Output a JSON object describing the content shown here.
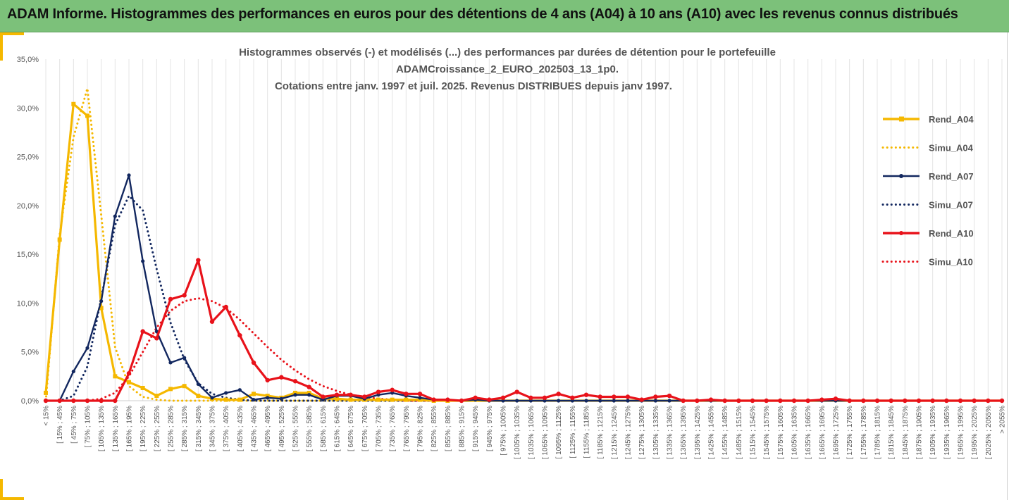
{
  "header": {
    "title": "ADAM Informe. Histogrammes des performances en euros pour des détentions de 4 ans (A04) à 10 ans (A10) avec les revenus connus distribués"
  },
  "chart_data": {
    "type": "line",
    "title_lines": [
      "Histogrammes observés (-) et modélisés (...) des performances par durées de détention pour le portefeuille",
      "ADAMCroissance_2_EURO_202503_13_1p0.",
      "Cotations entre janv. 1997 et juil. 2025. Revenus DISTRIBUES depuis janv 1997."
    ],
    "xlabel": "",
    "ylabel": "",
    "ylim": [
      0,
      35
    ],
    "yticks": [
      "0,0%",
      "5,0%",
      "10,0%",
      "15,0%",
      "20,0%",
      "25,0%",
      "30,0%",
      "35,0%"
    ],
    "grid": true,
    "legend_position": "right",
    "categories": [
      "< 15%",
      "[ 15% ; 45%",
      "[ 45% ; 75%",
      "[ 75% ; 105%",
      "[ 105% ; 135%",
      "[ 135% ; 165%",
      "[ 165% ; 195%",
      "[ 195% ; 225%",
      "[ 225% ; 255%",
      "[ 255% ; 285%",
      "[ 285% ; 315%",
      "[ 315% ; 345%",
      "[ 345% ; 375%",
      "[ 375% ; 405%",
      "[ 405% ; 435%",
      "[ 435% ; 465%",
      "[ 465% ; 495%",
      "[ 495% ; 525%",
      "[ 525% ; 555%",
      "[ 555% ; 585%",
      "[ 585% ; 615%",
      "[ 615% ; 645%",
      "[ 645% ; 675%",
      "[ 675% ; 705%",
      "[ 705% ; 735%",
      "[ 735% ; 765%",
      "[ 765% ; 795%",
      "[ 795% ; 825%",
      "[ 825% ; 855%",
      "[ 855% ; 885%",
      "[ 885% ; 915%",
      "[ 915% ; 945%",
      "[ 945% ; 975%",
      "[ 975% ; 1005%",
      "[ 1005% ; 1035%",
      "[ 1035% ; 1065%",
      "[ 1065% ; 1095%",
      "[ 1095% ; 1125%",
      "[ 1125% ; 1155%",
      "[ 1155% ; 1185%",
      "[ 1185% ; 1215%",
      "[ 1215% ; 1245%",
      "[ 1245% ; 1275%",
      "[ 1275% ; 1305%",
      "[ 1305% ; 1335%",
      "[ 1335% ; 1365%",
      "[ 1365% ; 1395%",
      "[ 1395% ; 1425%",
      "[ 1425% ; 1455%",
      "[ 1455% ; 1485%",
      "[ 1485% ; 1515%",
      "[ 1515% ; 1545%",
      "[ 1545% ; 1575%",
      "[ 1575% ; 1605%",
      "[ 1605% ; 1635%",
      "[ 1635% ; 1665%",
      "[ 1665% ; 1695%",
      "[ 1695% ; 1725%",
      "[ 1725% ; 1755%",
      "[ 1755% ; 1785%",
      "[ 1785% ; 1815%",
      "[ 1815% ; 1845%",
      "[ 1845% ; 1875%",
      "[ 1875% ; 1905%",
      "[ 1905% ; 1935%",
      "[ 1935% ; 1965%",
      "[ 1965% ; 1995%",
      "[ 1995% ; 2025%",
      "[ 2025% ; 2055%",
      "> 2055%"
    ],
    "series": [
      {
        "name": "Rend_A04",
        "color": "#f5b800",
        "style": "solid",
        "marker": "square",
        "values": [
          0.8,
          16.5,
          30.4,
          29.2,
          9.5,
          2.5,
          1.9,
          1.3,
          0.5,
          1.2,
          1.5,
          0.5,
          0.2,
          0.1,
          0.1,
          0.7,
          0.5,
          0.3,
          0.8,
          0.8,
          0.2,
          0.2,
          0.1,
          0.1,
          0.1,
          0.1,
          0.1,
          0.1,
          0,
          0,
          0,
          0,
          0,
          0,
          0,
          0,
          0,
          0,
          0,
          0,
          0,
          0,
          0,
          0,
          0,
          0,
          0,
          0,
          0,
          0,
          0,
          0,
          0,
          0,
          0,
          0,
          0,
          0,
          0,
          0,
          0,
          0,
          0,
          0,
          0,
          0,
          0,
          0,
          0,
          0
        ]
      },
      {
        "name": "Simu_A04",
        "color": "#f5b800",
        "style": "dotted",
        "marker": "none",
        "values": [
          0,
          17,
          27,
          32,
          19,
          5.5,
          1.5,
          0.4,
          0.1,
          0,
          0,
          0,
          0,
          0,
          0,
          0,
          0,
          0,
          0,
          0,
          0,
          0,
          0,
          0,
          0,
          0,
          0,
          0,
          0,
          0,
          0,
          0,
          0,
          0,
          0,
          0,
          0,
          0,
          0,
          0,
          0,
          0,
          0,
          0,
          0,
          0,
          0,
          0,
          0,
          0,
          0,
          0,
          0,
          0,
          0,
          0,
          0,
          0,
          0,
          0,
          0,
          0,
          0,
          0,
          0,
          0,
          0,
          0,
          0,
          0
        ]
      },
      {
        "name": "Rend_A07",
        "color": "#12275f",
        "style": "solid",
        "marker": "circle",
        "values": [
          0,
          0,
          3.0,
          5.4,
          10.2,
          18.9,
          23.1,
          14.3,
          7.1,
          3.9,
          4.4,
          1.7,
          0.3,
          0.8,
          1.1,
          0.1,
          0.3,
          0.2,
          0.6,
          0.6,
          0.1,
          0.5,
          0.5,
          0.2,
          0.6,
          0.8,
          0.5,
          0.3,
          0.1,
          0.1,
          0,
          0.1,
          0,
          0,
          0,
          0,
          0,
          0,
          0,
          0,
          0,
          0,
          0,
          0,
          0,
          0,
          0,
          0,
          0,
          0,
          0,
          0,
          0,
          0,
          0,
          0,
          0,
          0,
          0,
          0,
          0,
          0,
          0,
          0,
          0,
          0,
          0,
          0,
          0,
          0
        ]
      },
      {
        "name": "Simu_A07",
        "color": "#12275f",
        "style": "dotted",
        "marker": "none",
        "values": [
          0,
          0,
          0.5,
          3.5,
          10.5,
          18,
          21,
          19.5,
          13.5,
          8,
          4.2,
          1.8,
          0.7,
          0.3,
          0.1,
          0,
          0,
          0,
          0,
          0,
          0,
          0,
          0,
          0,
          0,
          0,
          0,
          0,
          0,
          0,
          0,
          0,
          0,
          0,
          0,
          0,
          0,
          0,
          0,
          0,
          0,
          0,
          0,
          0,
          0,
          0,
          0,
          0,
          0,
          0,
          0,
          0,
          0,
          0,
          0,
          0,
          0,
          0,
          0,
          0,
          0,
          0,
          0,
          0,
          0,
          0,
          0,
          0,
          0,
          0
        ]
      },
      {
        "name": "Rend_A10",
        "color": "#e8121a",
        "style": "solid",
        "marker": "circle",
        "values": [
          0,
          0,
          0,
          0,
          0,
          0,
          2.8,
          7.1,
          6.4,
          10.4,
          10.8,
          14.4,
          8.1,
          9.6,
          6.7,
          3.9,
          2.1,
          2.4,
          2.0,
          1.4,
          0.4,
          0.6,
          0.6,
          0.4,
          0.9,
          1.1,
          0.7,
          0.7,
          0.1,
          0.1,
          0,
          0.3,
          0.1,
          0.3,
          0.9,
          0.3,
          0.3,
          0.7,
          0.3,
          0.6,
          0.4,
          0.4,
          0.4,
          0.1,
          0.4,
          0.5,
          0,
          0,
          0.1,
          0,
          0,
          0,
          0,
          0,
          0,
          0,
          0.1,
          0.2,
          0,
          0,
          0,
          0,
          0,
          0,
          0,
          0,
          0,
          0,
          0,
          0
        ]
      },
      {
        "name": "Simu_A10",
        "color": "#e8121a",
        "style": "dotted",
        "marker": "none",
        "values": [
          0,
          0,
          0,
          0,
          0.2,
          0.8,
          2.5,
          5,
          7.5,
          9.2,
          10.2,
          10.5,
          10.2,
          9.5,
          8.3,
          6.9,
          5.5,
          4.2,
          3.1,
          2.2,
          1.5,
          1.0,
          0.6,
          0.4,
          0.2,
          0.1,
          0,
          0,
          0,
          0,
          0,
          0,
          0,
          0,
          0,
          0,
          0,
          0,
          0,
          0,
          0,
          0,
          0,
          0,
          0,
          0,
          0,
          0,
          0,
          0,
          0,
          0,
          0,
          0,
          0,
          0,
          0,
          0,
          0,
          0,
          0,
          0,
          0,
          0,
          0,
          0,
          0,
          0,
          0,
          0
        ]
      }
    ]
  }
}
